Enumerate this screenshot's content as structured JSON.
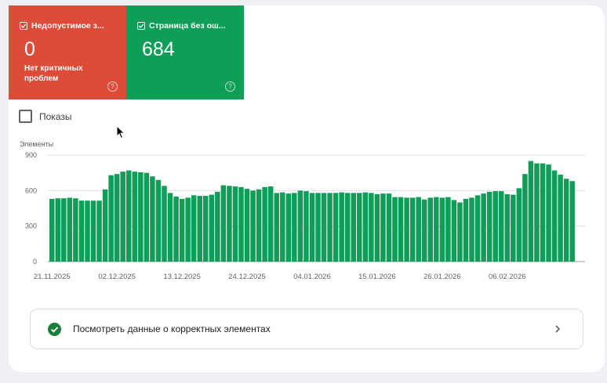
{
  "tiles": {
    "invalid": {
      "label": "Недопустимое з...",
      "value": "0",
      "sub": "Нет критичных проблем",
      "help": "?",
      "color": "#dd4b39"
    },
    "valid": {
      "label": "Страница без ош...",
      "value": "684",
      "help": "?",
      "color": "#0f9d58"
    }
  },
  "impressions": {
    "label": "Показы"
  },
  "chart_data": {
    "type": "bar",
    "ylabel": "Элементы",
    "ylim": [
      0,
      900
    ],
    "yticks": [
      "900",
      "600",
      "300",
      "0"
    ],
    "xticks": [
      "21.11.2025",
      "02.12.2025",
      "13.12.2025",
      "24.12.2025",
      "04.01.2026",
      "15.01.2026",
      "26.01.2026",
      "06.02.2026"
    ],
    "start_date": "2025-11-21",
    "bar_color": "#0f9d58",
    "values": [
      530,
      535,
      535,
      540,
      535,
      515,
      515,
      515,
      515,
      610,
      730,
      740,
      760,
      770,
      760,
      755,
      750,
      720,
      690,
      640,
      580,
      550,
      530,
      540,
      560,
      555,
      555,
      565,
      590,
      645,
      640,
      635,
      630,
      615,
      600,
      610,
      630,
      635,
      580,
      585,
      575,
      580,
      600,
      595,
      580,
      580,
      580,
      580,
      580,
      585,
      580,
      580,
      580,
      585,
      580,
      570,
      575,
      575,
      545,
      545,
      540,
      540,
      545,
      525,
      540,
      545,
      540,
      545,
      520,
      500,
      530,
      540,
      560,
      575,
      590,
      595,
      595,
      570,
      565,
      620,
      740,
      850,
      830,
      830,
      820,
      770,
      735,
      700,
      680
    ]
  },
  "link": {
    "text": "Посмотреть данные о корректных элементах"
  },
  "colors": {
    "ok": "#188038",
    "gridline": "#e0e0e0"
  }
}
